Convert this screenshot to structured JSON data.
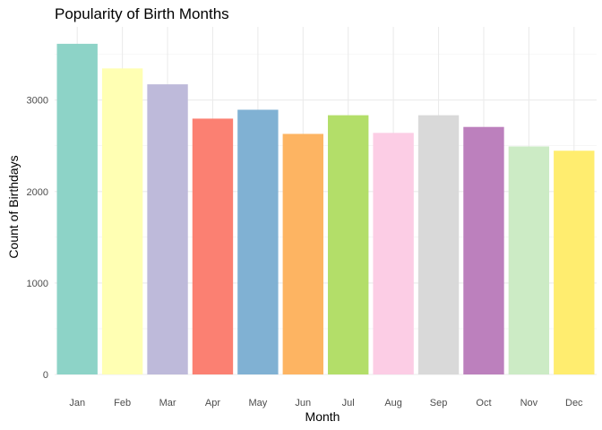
{
  "chart_data": {
    "type": "bar",
    "title": "Popularity of Birth Months",
    "xlabel": "Month",
    "ylabel": "Count of Birthdays",
    "categories": [
      "Jan",
      "Feb",
      "Mar",
      "Apr",
      "May",
      "Jun",
      "Jul",
      "Aug",
      "Sep",
      "Oct",
      "Nov",
      "Dec"
    ],
    "values": [
      3615,
      3346,
      3172,
      2797,
      2894,
      2630,
      2834,
      2641,
      2834,
      2706,
      2493,
      2446
    ],
    "colors": [
      "#8DD3C7",
      "#FFFFB3",
      "#BEBADA",
      "#FB8072",
      "#80B1D3",
      "#FDB462",
      "#B3DE69",
      "#FCCDE5",
      "#D9D9D9",
      "#BC80BD",
      "#CCEBC5",
      "#FFED6F"
    ],
    "yticks": [
      0,
      1000,
      2000,
      3000
    ],
    "ylim": [
      0,
      3800
    ],
    "grid": true,
    "legend": "none"
  }
}
